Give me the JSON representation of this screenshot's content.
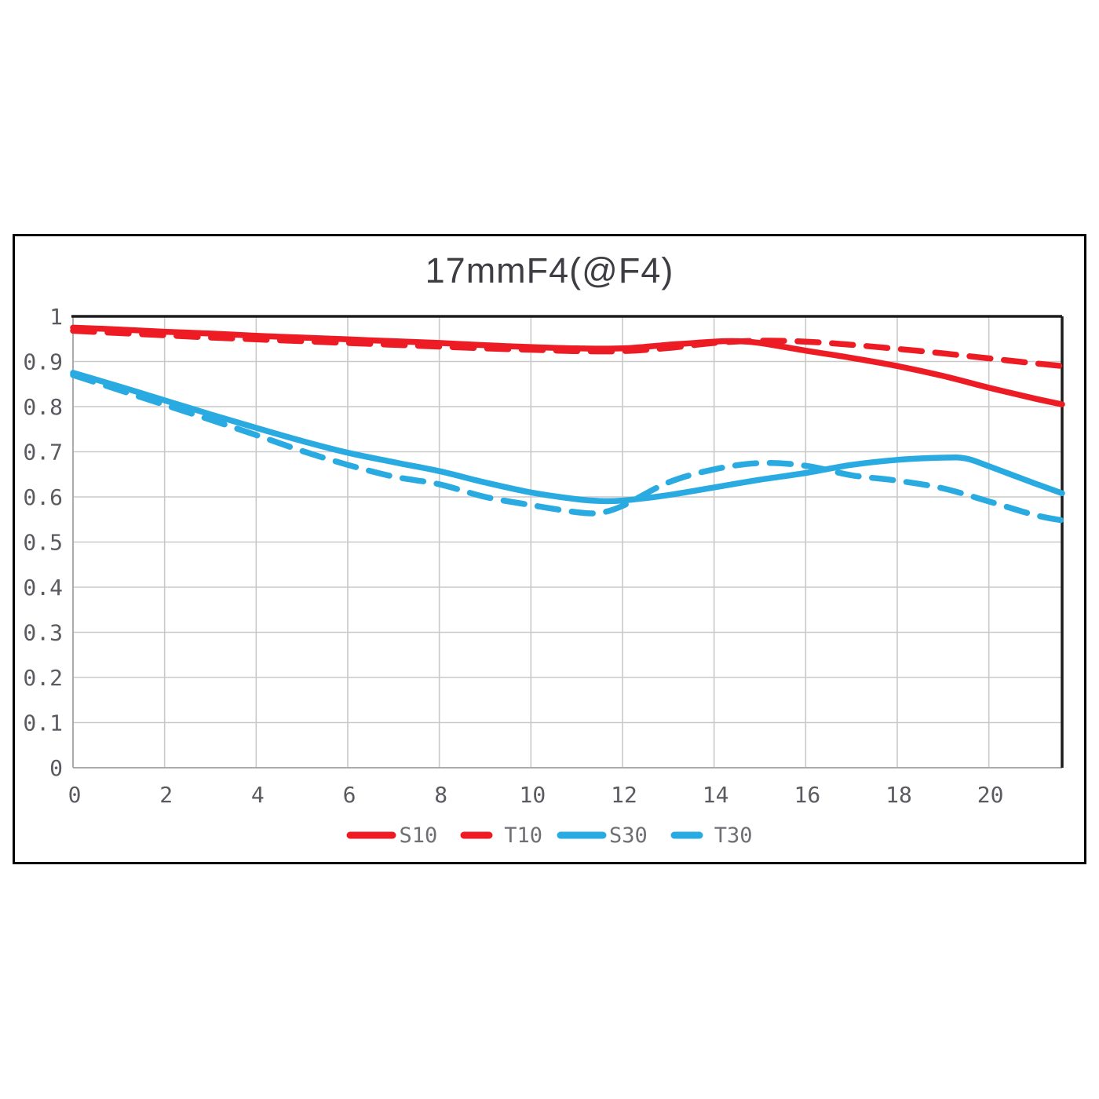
{
  "chart_data": {
    "type": "line",
    "title": "17mmF4(@F4)",
    "grid": true,
    "legend_position": "bottom-center",
    "x_axis": {
      "min": 0,
      "max": 21.6,
      "grid_step": 2,
      "tick_values": [
        0,
        2,
        4,
        6,
        8,
        10,
        12,
        14,
        16,
        18,
        20
      ],
      "tick_labels": [
        "0",
        "2",
        "4",
        "6",
        "8",
        "10",
        "12",
        "14",
        "16",
        "18",
        "20"
      ]
    },
    "y_axis": {
      "min": 0,
      "max": 1,
      "grid_step": 0.1,
      "tick_values": [
        0,
        0.1,
        0.2,
        0.3,
        0.4,
        0.5,
        0.6,
        0.7,
        0.8,
        0.9,
        1
      ],
      "tick_labels": [
        "0",
        "0.1",
        "0.2",
        "0.3",
        "0.4",
        "0.5",
        "0.6",
        "0.7",
        "0.8",
        "0.9",
        "1"
      ]
    },
    "series": [
      {
        "name": "S10",
        "color": "#ED1C24",
        "style": "solid",
        "points": [
          [
            0,
            0.975
          ],
          [
            1,
            0.971
          ],
          [
            2,
            0.966
          ],
          [
            3,
            0.962
          ],
          [
            4,
            0.957
          ],
          [
            5,
            0.953
          ],
          [
            6,
            0.949
          ],
          [
            7,
            0.945
          ],
          [
            8,
            0.941
          ],
          [
            9,
            0.936
          ],
          [
            10,
            0.932
          ],
          [
            11,
            0.929
          ],
          [
            12,
            0.929
          ],
          [
            13,
            0.937
          ],
          [
            14,
            0.944
          ],
          [
            14.5,
            0.945
          ],
          [
            15,
            0.941
          ],
          [
            16,
            0.924
          ],
          [
            17,
            0.908
          ],
          [
            18,
            0.89
          ],
          [
            19,
            0.868
          ],
          [
            20,
            0.842
          ],
          [
            21,
            0.818
          ],
          [
            21.6,
            0.805
          ]
        ]
      },
      {
        "name": "T10",
        "color": "#ED1C24",
        "style": "dashed",
        "points": [
          [
            0,
            0.968
          ],
          [
            1,
            0.963
          ],
          [
            2,
            0.958
          ],
          [
            3,
            0.953
          ],
          [
            4,
            0.949
          ],
          [
            5,
            0.945
          ],
          [
            6,
            0.941
          ],
          [
            7,
            0.937
          ],
          [
            8,
            0.933
          ],
          [
            9,
            0.929
          ],
          [
            10,
            0.926
          ],
          [
            11,
            0.923
          ],
          [
            12,
            0.923
          ],
          [
            13,
            0.93
          ],
          [
            14,
            0.941
          ],
          [
            15,
            0.946
          ],
          [
            16,
            0.944
          ],
          [
            17,
            0.937
          ],
          [
            18,
            0.928
          ],
          [
            19,
            0.918
          ],
          [
            20,
            0.907
          ],
          [
            21,
            0.896
          ],
          [
            21.6,
            0.89
          ]
        ]
      },
      {
        "name": "S30",
        "color": "#29ABE2",
        "style": "solid",
        "points": [
          [
            0,
            0.875
          ],
          [
            1,
            0.845
          ],
          [
            2,
            0.814
          ],
          [
            3,
            0.783
          ],
          [
            4,
            0.753
          ],
          [
            5,
            0.724
          ],
          [
            6,
            0.698
          ],
          [
            7,
            0.677
          ],
          [
            8,
            0.657
          ],
          [
            9,
            0.632
          ],
          [
            10,
            0.61
          ],
          [
            11,
            0.595
          ],
          [
            11.5,
            0.591
          ],
          [
            12,
            0.592
          ],
          [
            13,
            0.604
          ],
          [
            14,
            0.621
          ],
          [
            15,
            0.638
          ],
          [
            16,
            0.653
          ],
          [
            17,
            0.671
          ],
          [
            18,
            0.682
          ],
          [
            19,
            0.687
          ],
          [
            19.5,
            0.685
          ],
          [
            20,
            0.668
          ],
          [
            21,
            0.63
          ],
          [
            21.6,
            0.608
          ]
        ]
      },
      {
        "name": "T30",
        "color": "#29ABE2",
        "style": "dashed",
        "points": [
          [
            0,
            0.87
          ],
          [
            1,
            0.837
          ],
          [
            2,
            0.804
          ],
          [
            3,
            0.771
          ],
          [
            4,
            0.737
          ],
          [
            5,
            0.702
          ],
          [
            6,
            0.671
          ],
          [
            7,
            0.645
          ],
          [
            8,
            0.628
          ],
          [
            9,
            0.6
          ],
          [
            10,
            0.582
          ],
          [
            11,
            0.566
          ],
          [
            11.5,
            0.565
          ],
          [
            12,
            0.58
          ],
          [
            13,
            0.632
          ],
          [
            14,
            0.661
          ],
          [
            15,
            0.675
          ],
          [
            16,
            0.669
          ],
          [
            17,
            0.648
          ],
          [
            18,
            0.636
          ],
          [
            19,
            0.619
          ],
          [
            20,
            0.59
          ],
          [
            21,
            0.56
          ],
          [
            21.6,
            0.548
          ]
        ]
      }
    ]
  },
  "layout_colors": {
    "frame_border": "#000000",
    "plot_border_dark": "#1c1c1c",
    "plot_border_light": "#ababab",
    "grid_line": "#c9c9c9",
    "tick_text": "#5a5a60",
    "title_text": "#3d3d43",
    "legend_text": "#6e6e74",
    "background": "#ffffff"
  }
}
